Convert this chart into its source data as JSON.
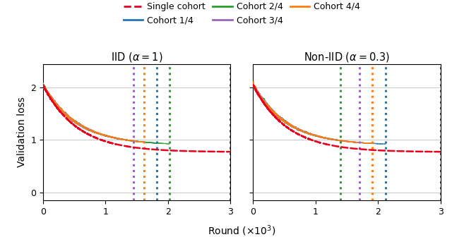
{
  "title_left": "IID ($\\alpha = 1$)",
  "title_right": "Non-IID ($\\alpha = 0.3$)",
  "xlabel": "Round ($\\times 10^3$)",
  "ylabel": "Validation loss",
  "xlim": [
    0,
    3000
  ],
  "ylim": [
    -0.15,
    2.45
  ],
  "yticks": [
    0,
    1,
    2
  ],
  "xticks": [
    0,
    1000,
    2000,
    3000
  ],
  "xticklabels": [
    "0",
    "1",
    "2",
    "3"
  ],
  "colors": {
    "single_cohort": "#e8001d",
    "cohort_1_4": "#1f77b4",
    "cohort_2_4": "#2ca02c",
    "cohort_3_4": "#9467bd",
    "cohort_4_4": "#ff7f0e"
  },
  "vlines_iid": {
    "cohort_3_4": 1450,
    "cohort_4_4": 1620,
    "cohort_1_4": 1820,
    "cohort_2_4": 2020,
    "single_cohort": 3000
  },
  "vlines_noniid": {
    "cohort_2_4": 1400,
    "cohort_3_4": 1700,
    "cohort_4_4": 1900,
    "cohort_1_4": 2120,
    "single_cohort": 3000
  },
  "y_start": 2.05,
  "single_cohort_end": 0.77,
  "cohort_end": 0.9,
  "decay_rate": 5.5
}
